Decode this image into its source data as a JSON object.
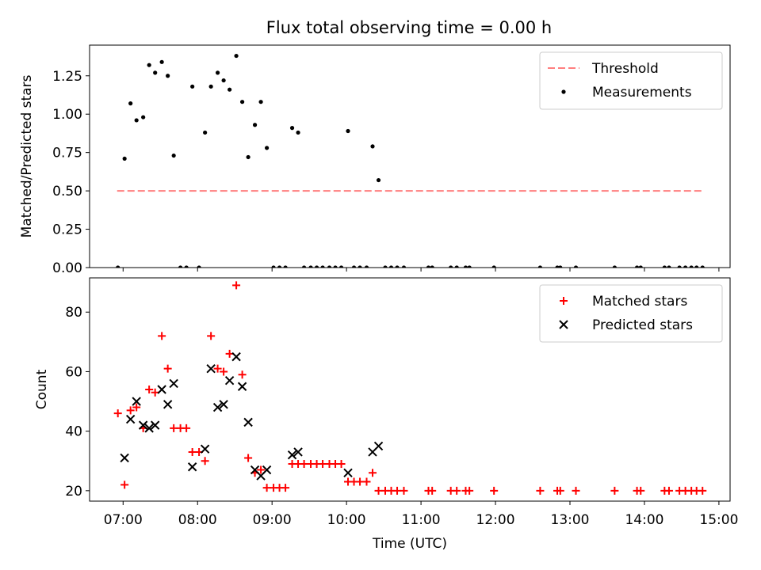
{
  "chart_data": [
    {
      "type": "scatter",
      "title": "Flux total observing time = 0.00 h",
      "ylabel": "Matched/Predicted stars",
      "xlabel": "",
      "xlim": [
        6.55,
        15.15
      ],
      "ylim": [
        0,
        1.45
      ],
      "yticks": [
        0,
        0.25,
        0.5,
        0.75,
        1.0,
        1.25
      ],
      "ytick_labels": [
        "0.00",
        "0.25",
        "0.50",
        "0.75",
        "1.00",
        "1.25"
      ],
      "legend_position": "top-right",
      "threshold": {
        "name": "Threshold",
        "value": 0.5,
        "x_range": [
          6.92,
          14.8
        ],
        "color": "#ff7f7f"
      },
      "series": [
        {
          "name": "Measurements",
          "color": "#000000",
          "points": [
            [
              6.93,
              0
            ],
            [
              7.02,
              0.71
            ],
            [
              7.1,
              1.07
            ],
            [
              7.18,
              0.96
            ],
            [
              7.27,
              0.98
            ],
            [
              7.35,
              1.32
            ],
            [
              7.43,
              1.27
            ],
            [
              7.52,
              1.34
            ],
            [
              7.6,
              1.25
            ],
            [
              7.68,
              0.73
            ],
            [
              7.77,
              0
            ],
            [
              7.85,
              0
            ],
            [
              7.93,
              1.18
            ],
            [
              8.02,
              0
            ],
            [
              8.1,
              0.88
            ],
            [
              8.18,
              1.18
            ],
            [
              8.27,
              1.27
            ],
            [
              8.35,
              1.22
            ],
            [
              8.43,
              1.16
            ],
            [
              8.52,
              1.38
            ],
            [
              8.6,
              1.08
            ],
            [
              8.68,
              0.72
            ],
            [
              8.77,
              0.93
            ],
            [
              8.85,
              1.08
            ],
            [
              8.93,
              0.78
            ],
            [
              9.02,
              0
            ],
            [
              9.1,
              0
            ],
            [
              9.18,
              0
            ],
            [
              9.27,
              0.91
            ],
            [
              9.35,
              0.88
            ],
            [
              9.43,
              0
            ],
            [
              9.52,
              0
            ],
            [
              9.6,
              0
            ],
            [
              9.68,
              0
            ],
            [
              9.77,
              0
            ],
            [
              9.85,
              0
            ],
            [
              9.93,
              0
            ],
            [
              10.02,
              0.89
            ],
            [
              10.1,
              0
            ],
            [
              10.18,
              0
            ],
            [
              10.27,
              0
            ],
            [
              10.35,
              0.79
            ],
            [
              10.43,
              0.57
            ],
            [
              10.52,
              0
            ],
            [
              10.6,
              0
            ],
            [
              10.68,
              0
            ],
            [
              10.77,
              0
            ],
            [
              11.1,
              0
            ],
            [
              11.15,
              0
            ],
            [
              11.4,
              0
            ],
            [
              11.48,
              0
            ],
            [
              11.6,
              0
            ],
            [
              11.65,
              0
            ],
            [
              11.98,
              0
            ],
            [
              12.6,
              0
            ],
            [
              12.83,
              0
            ],
            [
              12.87,
              0
            ],
            [
              13.08,
              0
            ],
            [
              13.6,
              0
            ],
            [
              13.9,
              0
            ],
            [
              13.95,
              0
            ],
            [
              14.27,
              0
            ],
            [
              14.33,
              0
            ],
            [
              14.47,
              0
            ],
            [
              14.55,
              0
            ],
            [
              14.63,
              0
            ],
            [
              14.7,
              0
            ],
            [
              14.78,
              0
            ]
          ]
        }
      ]
    },
    {
      "type": "scatter",
      "title": "",
      "ylabel": "Count",
      "xlabel": "Time (UTC)",
      "xlim": [
        6.55,
        15.15
      ],
      "ylim": [
        16.5,
        91.5
      ],
      "yticks": [
        20,
        40,
        60,
        80
      ],
      "ytick_labels": [
        "20",
        "40",
        "60",
        "80"
      ],
      "xticks": [
        7,
        8,
        9,
        10,
        11,
        12,
        13,
        14,
        15
      ],
      "xtick_labels": [
        "07:00",
        "08:00",
        "09:00",
        "10:00",
        "11:00",
        "12:00",
        "13:00",
        "14:00",
        "15:00"
      ],
      "legend_position": "top-right",
      "series": [
        {
          "name": "Matched stars",
          "color": "#ff0000",
          "marker": "plus",
          "points": [
            [
              6.93,
              46
            ],
            [
              7.02,
              22
            ],
            [
              7.1,
              47
            ],
            [
              7.18,
              48
            ],
            [
              7.27,
              41
            ],
            [
              7.35,
              54
            ],
            [
              7.43,
              53
            ],
            [
              7.52,
              72
            ],
            [
              7.6,
              61
            ],
            [
              7.68,
              41
            ],
            [
              7.77,
              41
            ],
            [
              7.85,
              41
            ],
            [
              7.93,
              33
            ],
            [
              8.02,
              33
            ],
            [
              8.1,
              30
            ],
            [
              8.18,
              72
            ],
            [
              8.27,
              61
            ],
            [
              8.35,
              60
            ],
            [
              8.43,
              66
            ],
            [
              8.52,
              89
            ],
            [
              8.6,
              59
            ],
            [
              8.68,
              31
            ],
            [
              8.77,
              26
            ],
            [
              8.85,
              27
            ],
            [
              8.93,
              21
            ],
            [
              9.02,
              21
            ],
            [
              9.1,
              21
            ],
            [
              9.18,
              21
            ],
            [
              9.27,
              29
            ],
            [
              9.35,
              29
            ],
            [
              9.43,
              29
            ],
            [
              9.52,
              29
            ],
            [
              9.6,
              29
            ],
            [
              9.68,
              29
            ],
            [
              9.77,
              29
            ],
            [
              9.85,
              29
            ],
            [
              9.93,
              29
            ],
            [
              10.02,
              23
            ],
            [
              10.1,
              23
            ],
            [
              10.18,
              23
            ],
            [
              10.27,
              23
            ],
            [
              10.35,
              26
            ],
            [
              10.43,
              20
            ],
            [
              10.52,
              20
            ],
            [
              10.6,
              20
            ],
            [
              10.68,
              20
            ],
            [
              10.77,
              20
            ],
            [
              11.1,
              20
            ],
            [
              11.15,
              20
            ],
            [
              11.4,
              20
            ],
            [
              11.48,
              20
            ],
            [
              11.6,
              20
            ],
            [
              11.65,
              20
            ],
            [
              11.98,
              20
            ],
            [
              12.6,
              20
            ],
            [
              12.83,
              20
            ],
            [
              12.87,
              20
            ],
            [
              13.08,
              20
            ],
            [
              13.6,
              20
            ],
            [
              13.9,
              20
            ],
            [
              13.95,
              20
            ],
            [
              14.27,
              20
            ],
            [
              14.33,
              20
            ],
            [
              14.47,
              20
            ],
            [
              14.55,
              20
            ],
            [
              14.63,
              20
            ],
            [
              14.7,
              20
            ],
            [
              14.78,
              20
            ]
          ]
        },
        {
          "name": "Predicted stars",
          "color": "#000000",
          "marker": "x",
          "points": [
            [
              7.02,
              31
            ],
            [
              7.1,
              44
            ],
            [
              7.18,
              50
            ],
            [
              7.27,
              42
            ],
            [
              7.35,
              41
            ],
            [
              7.43,
              42
            ],
            [
              7.52,
              54
            ],
            [
              7.6,
              49
            ],
            [
              7.68,
              56
            ],
            [
              7.93,
              28
            ],
            [
              8.1,
              34
            ],
            [
              8.18,
              61
            ],
            [
              8.27,
              48
            ],
            [
              8.35,
              49
            ],
            [
              8.43,
              57
            ],
            [
              8.52,
              65
            ],
            [
              8.6,
              55
            ],
            [
              8.68,
              43
            ],
            [
              8.77,
              27
            ],
            [
              8.85,
              25
            ],
            [
              8.93,
              27
            ],
            [
              9.27,
              32
            ],
            [
              9.35,
              33
            ],
            [
              10.02,
              26
            ],
            [
              10.35,
              33
            ],
            [
              10.43,
              35
            ]
          ]
        }
      ]
    }
  ]
}
